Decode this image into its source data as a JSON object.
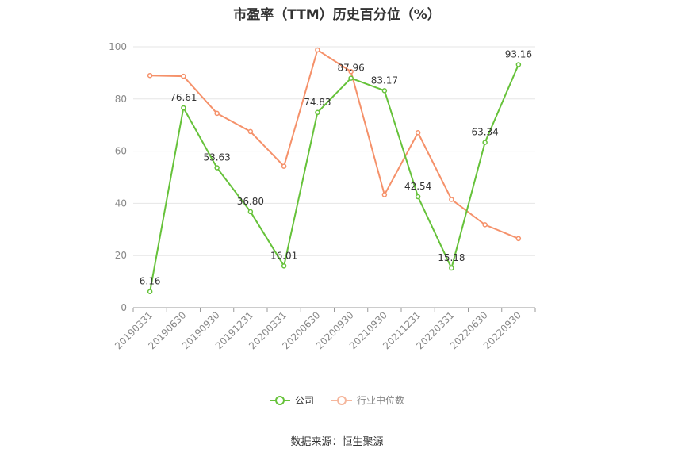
{
  "chart_data": {
    "type": "line",
    "title": "市盈率（TTM）历史百分位（%）",
    "categories": [
      "20190331",
      "20190630",
      "20190930",
      "20191231",
      "20200331",
      "20200630",
      "20200930",
      "20210930",
      "20211231",
      "20220331",
      "20220630",
      "20220930"
    ],
    "ylim": [
      0,
      100
    ],
    "yticks": [
      0,
      20,
      40,
      60,
      80,
      100
    ],
    "grid": true,
    "legend_position": "bottom-center",
    "series": [
      {
        "name": "公司",
        "color": "#66c23a",
        "show_labels": true,
        "values": [
          6.16,
          76.61,
          53.63,
          36.8,
          16.01,
          74.83,
          87.96,
          83.17,
          42.54,
          15.18,
          63.34,
          93.16
        ]
      },
      {
        "name": "行业中位数",
        "color": "#f5916a",
        "show_labels": false,
        "values": [
          89.0,
          88.7,
          74.5,
          67.5,
          54.2,
          98.8,
          90.5,
          43.3,
          67.1,
          41.5,
          31.8,
          26.5
        ]
      }
    ]
  },
  "legend": {
    "company": "公司",
    "industry": "行业中位数"
  },
  "source": "数据来源：恒生聚源"
}
